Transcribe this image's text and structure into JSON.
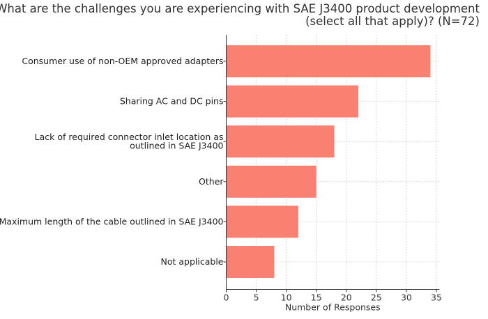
{
  "chart_data": {
    "type": "bar",
    "orientation": "horizontal",
    "title": [
      "What are the challenges you are experiencing with SAE J3400 product development",
      "(select all that apply)? (N=72)"
    ],
    "categories": [
      [
        "Consumer use of non-OEM approved adapters"
      ],
      [
        "Sharing AC and DC pins"
      ],
      [
        "Lack of required connector inlet location as",
        "outlined in SAE J3400"
      ],
      [
        "Other"
      ],
      [
        "Maximum length of the cable outlined in SAE J3400"
      ],
      [
        "Not applicable"
      ]
    ],
    "values": [
      34,
      22,
      18,
      15,
      12,
      8
    ],
    "xlabel": "Number of Responses",
    "ylabel": "",
    "xlim": [
      0,
      35.5
    ],
    "xticks": [
      0,
      5,
      10,
      15,
      20,
      25,
      30,
      35
    ],
    "grid": true,
    "bar_color": "#fa8072"
  }
}
